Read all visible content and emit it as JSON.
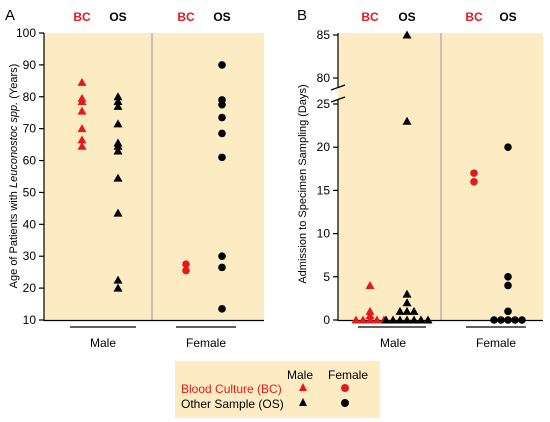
{
  "chart_data": [
    {
      "type": "scatter",
      "panel_label": "A",
      "ylabel_parts": [
        "Age of Patients with ",
        "Leuconostoc spp.",
        " (Years)"
      ],
      "ylim": [
        10,
        100
      ],
      "yticks": [
        10,
        20,
        30,
        40,
        50,
        60,
        70,
        80,
        90,
        100
      ],
      "groups": [
        "Male",
        "Female"
      ],
      "column_labels": [
        "BC",
        "OS",
        "BC",
        "OS"
      ],
      "series": [
        {
          "name": "Blood Culture (BC)",
          "group": "Male",
          "marker": "triangle",
          "values": [
            84.5,
            79.5,
            78.5,
            75.5,
            70,
            66.5,
            64.5
          ]
        },
        {
          "name": "Other Sample (OS)",
          "group": "Male",
          "marker": "triangle",
          "values": [
            80,
            78.5,
            77,
            71.5,
            65.5,
            64.5,
            63,
            54.5,
            43.5,
            22.5,
            20
          ]
        },
        {
          "name": "Blood Culture (BC)",
          "group": "Female",
          "marker": "circle",
          "values": [
            27.5,
            25.5
          ]
        },
        {
          "name": "Other Sample (OS)",
          "group": "Female",
          "marker": "circle",
          "values": [
            90,
            79,
            77.5,
            73.5,
            68.5,
            61,
            30,
            26.5,
            13.5
          ]
        }
      ]
    },
    {
      "type": "scatter",
      "panel_label": "B",
      "ylabel": "Admission to Specimen Sampling (Days)",
      "ylim_lower": [
        0,
        26
      ],
      "ylim_upper": [
        78,
        86
      ],
      "yticks_lower": [
        0,
        5,
        10,
        15,
        20,
        25
      ],
      "yticks_upper": [
        80,
        85
      ],
      "axis_break": true,
      "groups": [
        "Male",
        "Female"
      ],
      "column_labels": [
        "BC",
        "OS",
        "BC",
        "OS"
      ],
      "series": [
        {
          "name": "Blood Culture (BC)",
          "group": "Male",
          "marker": "triangle",
          "values": [
            4,
            1,
            0.5,
            0,
            0,
            0,
            0,
            0
          ]
        },
        {
          "name": "Other Sample (OS)",
          "group": "Male",
          "marker": "triangle",
          "values": [
            85,
            23,
            3,
            2,
            1,
            1,
            1,
            0,
            0,
            0,
            0,
            0,
            0,
            0
          ]
        },
        {
          "name": "Blood Culture (BC)",
          "group": "Female",
          "marker": "circle",
          "values": [
            17,
            16
          ]
        },
        {
          "name": "Other Sample (OS)",
          "group": "Female",
          "marker": "circle",
          "values": [
            20,
            5,
            4,
            1,
            0,
            0,
            0,
            0,
            0
          ]
        }
      ]
    }
  ],
  "legend": {
    "col_male": "Male",
    "col_female": "Female",
    "row_bc": "Blood Culture (BC)",
    "row_os": "Other Sample (OS)"
  },
  "colors": {
    "bc": "#e31a1c",
    "os": "#000000",
    "panel_bg": "#fdebc4",
    "divider": "#a6a6a6"
  }
}
